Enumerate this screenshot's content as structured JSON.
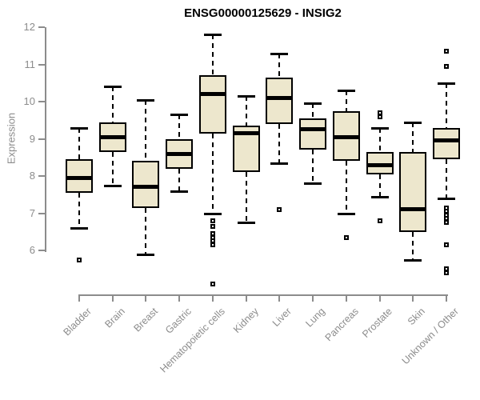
{
  "title": "ENSG00000125629 - INSIG2",
  "ylabel": "Expression",
  "colors": {
    "box_fill": "#EDE7CD",
    "box_border": "#000000",
    "median": "#000000",
    "axis": "#8C8C8C",
    "title_text": "#000000",
    "background": "#FFFFFF"
  },
  "chart_data": {
    "type": "boxplot",
    "title": "ENSG00000125629 - INSIG2",
    "xlabel": "",
    "ylabel": "Expression",
    "ylim": [
      6,
      12
    ],
    "yticks": [
      6,
      7,
      8,
      9,
      10,
      11,
      12
    ],
    "grid": false,
    "legend": "none",
    "categories": [
      "Bladder",
      "Brain",
      "Breast",
      "Gastric",
      "Hematopoietic cells",
      "Kidney",
      "Liver",
      "Lung",
      "Pancreas",
      "Prostate",
      "Skin",
      "Unknown / Other"
    ],
    "series": [
      {
        "category": "Bladder",
        "whisker_low": 6.6,
        "q1": 7.55,
        "median": 7.95,
        "q3": 8.45,
        "whisker_high": 9.3,
        "outliers": [
          5.75
        ]
      },
      {
        "category": "Brain",
        "whisker_low": 7.75,
        "q1": 8.65,
        "median": 9.05,
        "q3": 9.45,
        "whisker_high": 10.4,
        "outliers": []
      },
      {
        "category": "Breast",
        "whisker_low": 5.9,
        "q1": 7.15,
        "median": 7.7,
        "q3": 8.4,
        "whisker_high": 10.05,
        "outliers": []
      },
      {
        "category": "Gastric",
        "whisker_low": 7.6,
        "q1": 8.2,
        "median": 8.6,
        "q3": 9.0,
        "whisker_high": 9.65,
        "outliers": []
      },
      {
        "category": "Hematopoietic cells",
        "whisker_low": 7.0,
        "q1": 9.15,
        "median": 10.2,
        "q3": 10.7,
        "whisker_high": 11.8,
        "outliers": [
          6.8,
          6.65,
          6.45,
          6.35,
          6.25,
          6.15,
          5.1
        ]
      },
      {
        "category": "Kidney",
        "whisker_low": 6.75,
        "q1": 8.1,
        "median": 9.15,
        "q3": 9.35,
        "whisker_high": 10.15,
        "outliers": []
      },
      {
        "category": "Liver",
        "whisker_low": 8.35,
        "q1": 9.4,
        "median": 10.1,
        "q3": 10.65,
        "whisker_high": 11.3,
        "outliers": [
          7.1
        ]
      },
      {
        "category": "Lung",
        "whisker_low": 7.8,
        "q1": 8.7,
        "median": 9.25,
        "q3": 9.55,
        "whisker_high": 9.95,
        "outliers": []
      },
      {
        "category": "Pancreas",
        "whisker_low": 7.0,
        "q1": 8.4,
        "median": 9.05,
        "q3": 9.75,
        "whisker_high": 10.3,
        "outliers": [
          6.35
        ]
      },
      {
        "category": "Prostate",
        "whisker_low": 7.45,
        "q1": 8.05,
        "median": 8.3,
        "q3": 8.65,
        "whisker_high": 9.3,
        "outliers": [
          9.7,
          9.6,
          6.8
        ]
      },
      {
        "category": "Skin",
        "whisker_low": 5.75,
        "q1": 6.5,
        "median": 7.1,
        "q3": 8.65,
        "whisker_high": 9.45,
        "outliers": []
      },
      {
        "category": "Unknown / Other",
        "whisker_low": 7.4,
        "q1": 8.45,
        "median": 8.95,
        "q3": 9.3,
        "whisker_high": 10.5,
        "outliers": [
          11.35,
          10.95,
          7.15,
          7.05,
          6.95,
          6.85,
          6.75,
          6.15,
          5.5,
          5.4
        ]
      }
    ]
  }
}
